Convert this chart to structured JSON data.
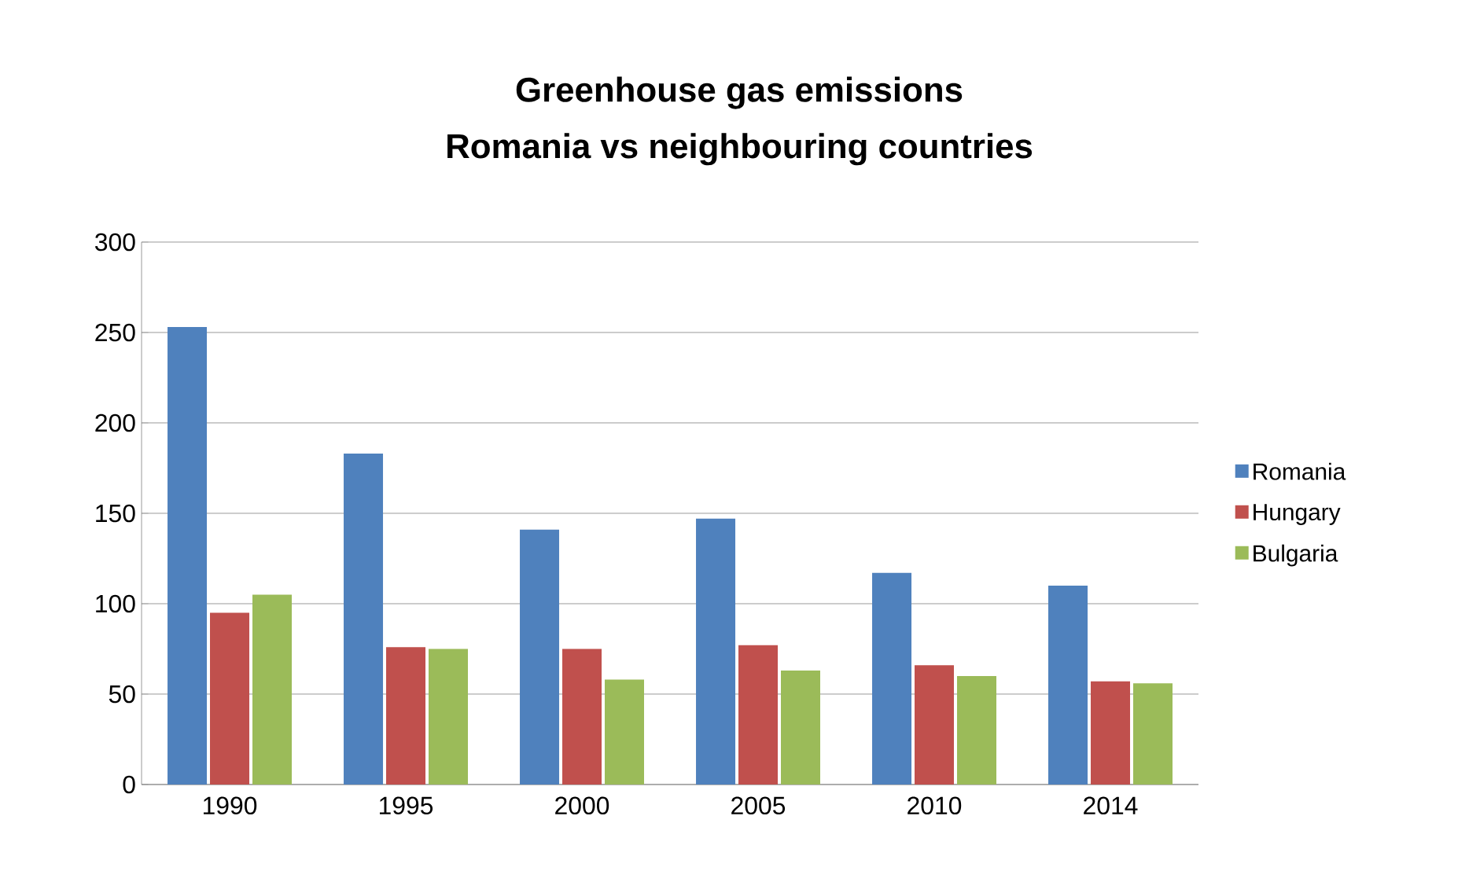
{
  "chart_data": {
    "type": "bar",
    "title": "Greenhouse gas emissions\nRomania vs neighbouring countries",
    "categories": [
      "1990",
      "1995",
      "2000",
      "2005",
      "2010",
      "2014"
    ],
    "series": [
      {
        "name": "Romania",
        "color": "#4f81bd",
        "values": [
          253,
          183,
          141,
          147,
          117,
          110
        ]
      },
      {
        "name": "Hungary",
        "color": "#c0504d",
        "values": [
          95,
          76,
          75,
          77,
          66,
          57
        ]
      },
      {
        "name": "Bulgaria",
        "color": "#9bbb59",
        "values": [
          105,
          75,
          58,
          63,
          60,
          56
        ]
      }
    ],
    "ylim": [
      0,
      300
    ],
    "yticks": [
      0,
      50,
      100,
      150,
      200,
      250,
      300
    ],
    "grid": "y",
    "legend": "right"
  }
}
